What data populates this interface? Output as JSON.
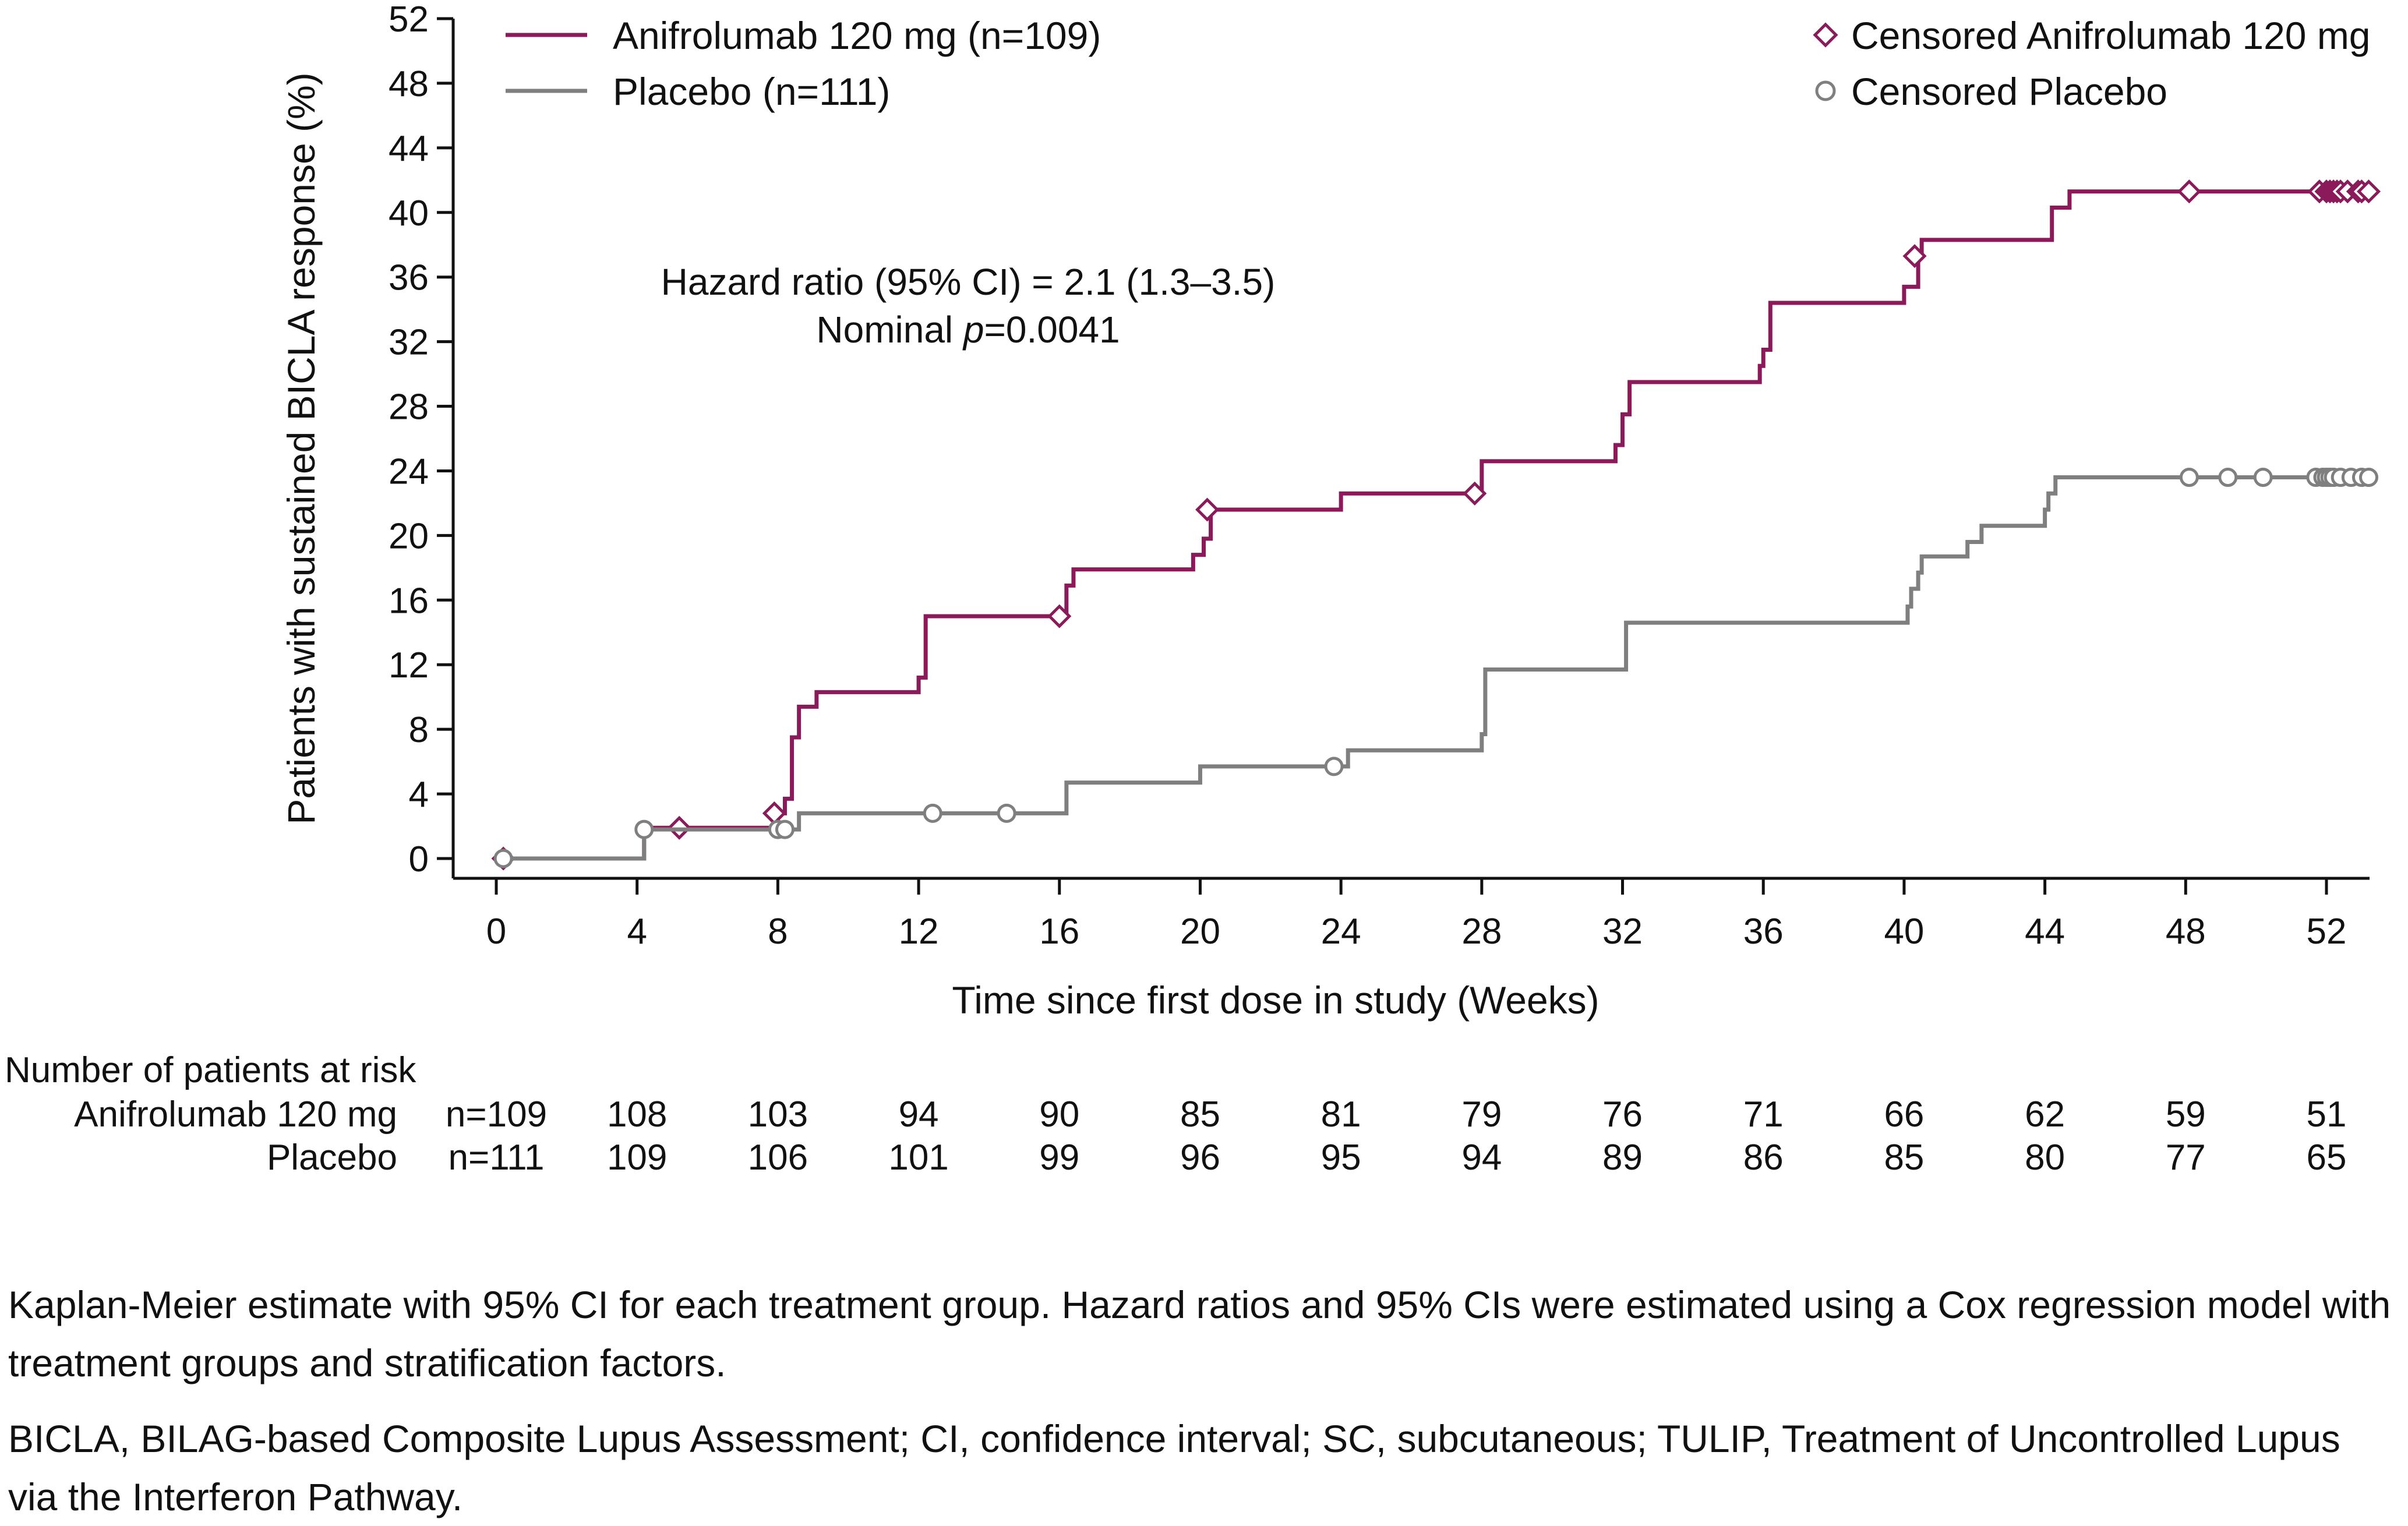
{
  "chart_data": {
    "type": "line",
    "subtype": "kaplan-meier step",
    "xlabel": "Time since first dose in study (Weeks)",
    "ylabel": "Patients with sustained BICLA response (%)",
    "xlim": [
      -2,
      54
    ],
    "ylim": [
      -1,
      52
    ],
    "xticks": [
      0,
      4,
      8,
      12,
      16,
      20,
      24,
      28,
      32,
      36,
      40,
      44,
      48,
      52
    ],
    "yticks": [
      0,
      4,
      8,
      12,
      16,
      20,
      24,
      28,
      32,
      36,
      40,
      44,
      48,
      52
    ],
    "grid": false,
    "legend_position": "top",
    "annotation": {
      "line1": "Hazard ratio (95% CI) = 2.1 (1.3–3.5)",
      "line2_prefix": "Nominal ",
      "line2_italic": "p",
      "line2_suffix": "=0.0041"
    },
    "series": [
      {
        "name": "Anifrolumab 120 mg (n=109)",
        "color": "#8B1A5A",
        "censor_name": "Censored Anifrolumab 120 mg",
        "censor_marker": "diamond",
        "steps": [
          [
            0,
            0
          ],
          [
            4.2,
            1.9
          ],
          [
            8.0,
            2.8
          ],
          [
            8.2,
            3.7
          ],
          [
            8.4,
            7.5
          ],
          [
            8.6,
            9.4
          ],
          [
            9.1,
            10.3
          ],
          [
            12.0,
            11.2
          ],
          [
            12.2,
            15.0
          ],
          [
            16.2,
            16.9
          ],
          [
            16.4,
            17.9
          ],
          [
            19.8,
            18.8
          ],
          [
            20.1,
            19.8
          ],
          [
            20.3,
            21.6
          ],
          [
            24.0,
            22.6
          ],
          [
            28.0,
            24.6
          ],
          [
            31.8,
            25.6
          ],
          [
            32.0,
            27.5
          ],
          [
            32.2,
            29.5
          ],
          [
            35.9,
            30.5
          ],
          [
            36.0,
            31.5
          ],
          [
            36.2,
            34.4
          ],
          [
            40.0,
            35.4
          ],
          [
            40.4,
            37.3
          ],
          [
            40.5,
            38.3
          ],
          [
            44.2,
            40.3
          ],
          [
            44.7,
            41.3
          ],
          [
            53.2,
            41.3
          ]
        ],
        "censored": [
          [
            0.2,
            0.0
          ],
          [
            5.2,
            1.9
          ],
          [
            7.9,
            2.8
          ],
          [
            16.0,
            15.0
          ],
          [
            20.2,
            21.6
          ],
          [
            27.8,
            22.6
          ],
          [
            40.3,
            37.3
          ],
          [
            48.1,
            41.3
          ],
          [
            51.8,
            41.3
          ],
          [
            52.0,
            41.3
          ],
          [
            52.1,
            41.3
          ],
          [
            52.2,
            41.3
          ],
          [
            52.3,
            41.3
          ],
          [
            52.4,
            41.3
          ],
          [
            52.6,
            41.3
          ],
          [
            52.9,
            41.3
          ],
          [
            53.0,
            41.3
          ],
          [
            53.2,
            41.3
          ]
        ]
      },
      {
        "name": "Placebo (n=111)",
        "color": "#7F7F7F",
        "censor_name": "Censored Placebo",
        "censor_marker": "circle",
        "steps": [
          [
            0,
            0
          ],
          [
            4.2,
            1.8
          ],
          [
            8.6,
            2.8
          ],
          [
            16.2,
            4.7
          ],
          [
            20.0,
            5.7
          ],
          [
            24.2,
            6.7
          ],
          [
            28.0,
            7.7
          ],
          [
            28.1,
            11.7
          ],
          [
            32.1,
            14.6
          ],
          [
            40.1,
            15.6
          ],
          [
            40.2,
            16.7
          ],
          [
            40.4,
            17.7
          ],
          [
            40.5,
            18.7
          ],
          [
            41.8,
            19.6
          ],
          [
            42.2,
            20.6
          ],
          [
            44.0,
            21.6
          ],
          [
            44.1,
            22.6
          ],
          [
            44.3,
            23.6
          ],
          [
            53.2,
            23.6
          ]
        ],
        "censored": [
          [
            0.2,
            0.0
          ],
          [
            4.2,
            1.8
          ],
          [
            8.0,
            1.8
          ],
          [
            8.2,
            1.8
          ],
          [
            12.4,
            2.8
          ],
          [
            14.5,
            2.8
          ],
          [
            23.8,
            5.7
          ],
          [
            48.1,
            23.6
          ],
          [
            49.2,
            23.6
          ],
          [
            50.2,
            23.6
          ],
          [
            51.7,
            23.6
          ],
          [
            51.9,
            23.6
          ],
          [
            52.0,
            23.6
          ],
          [
            52.1,
            23.6
          ],
          [
            52.2,
            23.6
          ],
          [
            52.4,
            23.6
          ],
          [
            52.7,
            23.6
          ],
          [
            53.0,
            23.6
          ],
          [
            53.2,
            23.6
          ]
        ]
      }
    ],
    "at_risk": {
      "title": "Number of patients at risk",
      "rows": [
        {
          "label": "Anifrolumab 120 mg",
          "values": [
            "n=109",
            "108",
            "103",
            "94",
            "90",
            "85",
            "81",
            "79",
            "76",
            "71",
            "66",
            "62",
            "59",
            "51"
          ]
        },
        {
          "label": "Placebo",
          "values": [
            "n=111",
            "109",
            "106",
            "101",
            "99",
            "96",
            "95",
            "94",
            "89",
            "86",
            "85",
            "80",
            "77",
            "65"
          ]
        }
      ]
    }
  },
  "footnotes": {
    "note1": "Kaplan-Meier estimate with 95% CI for each treatment group. Hazard ratios and 95% CIs were estimated using a Cox regression model with treatment groups and stratification factors.",
    "note2": "BICLA, BILAG-based Composite Lupus Assessment; CI, confidence interval; SC, subcutaneous; TULIP, Treatment of Uncontrolled Lupus via the Interferon Pathway."
  }
}
